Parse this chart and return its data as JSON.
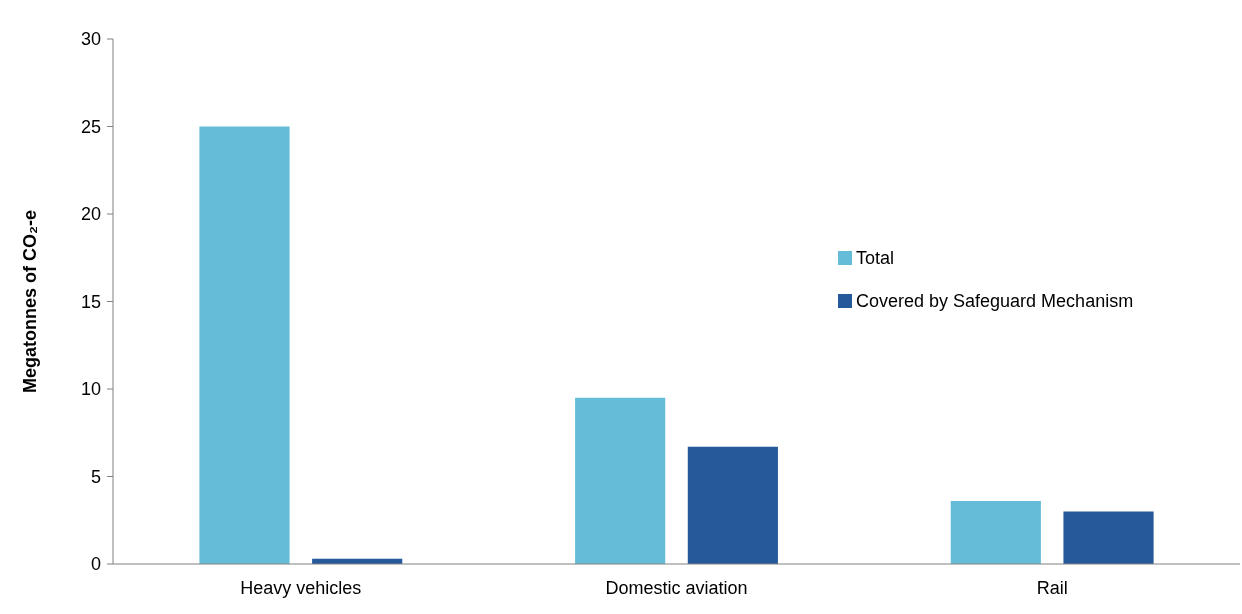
{
  "chart_data": {
    "type": "bar",
    "ylabel": "Megatonnes of CO₂-e",
    "categories": [
      "Heavy vehicles",
      "Domestic aviation",
      "Rail"
    ],
    "series": [
      {
        "name": "Total",
        "color": "#65bcd9",
        "values": [
          25,
          9.5,
          3.6
        ]
      },
      {
        "name": "Covered by Safeguard Mechanism",
        "color": "#255a9a",
        "values": [
          0.3,
          6.7,
          3.0
        ]
      }
    ],
    "ylim": [
      0,
      30
    ],
    "yticks": [
      0,
      5,
      10,
      15,
      20,
      25,
      30
    ],
    "grid": false,
    "legend": "right"
  }
}
